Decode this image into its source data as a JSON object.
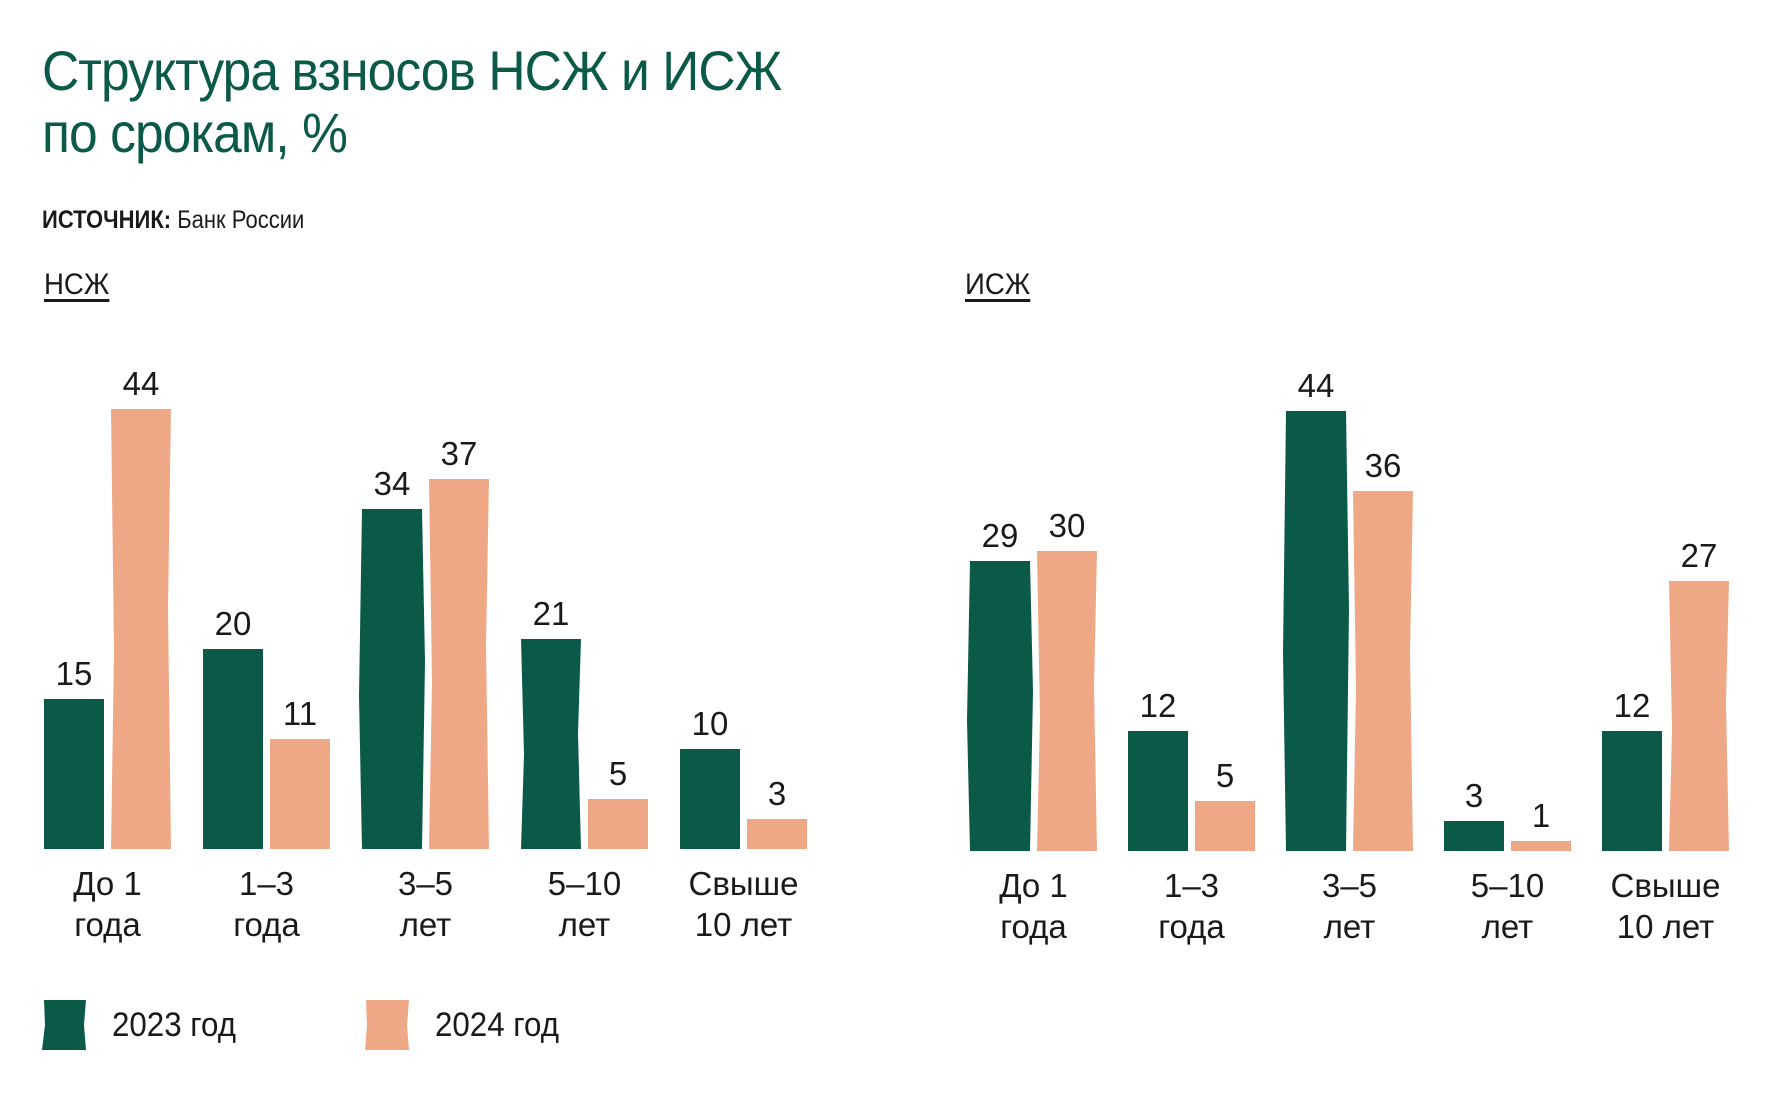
{
  "title_line1": "Структура взносов НСЖ и ИСЖ",
  "title_line2": "по срокам, %",
  "source_label": "ИСТОЧНИК:",
  "source_value": "Банк России",
  "colors": {
    "title": "#0b5a47",
    "series_2023": "#0b5a47",
    "series_2024": "#eea886"
  },
  "legend": [
    {
      "label": "2023 год",
      "color": "#0b5a47"
    },
    {
      "label": "2024 год",
      "color": "#eea886"
    }
  ],
  "chart_data": [
    {
      "type": "bar",
      "title": "НСЖ",
      "categories": [
        [
          "До 1",
          "года"
        ],
        [
          "1–3",
          "года"
        ],
        [
          "3–5",
          "лет"
        ],
        [
          "5–10",
          "лет"
        ],
        [
          "Свыше",
          "10 лет"
        ]
      ],
      "series": [
        {
          "name": "2023 год",
          "values": [
            15,
            20,
            34,
            21,
            10
          ]
        },
        {
          "name": "2024 год",
          "values": [
            44,
            11,
            37,
            5,
            3
          ]
        }
      ],
      "ylim": [
        0,
        44
      ]
    },
    {
      "type": "bar",
      "title": "ИСЖ",
      "categories": [
        [
          "До 1",
          "года"
        ],
        [
          "1–3",
          "года"
        ],
        [
          "3–5",
          "лет"
        ],
        [
          "5–10",
          "лет"
        ],
        [
          "Свыше",
          "10 лет"
        ]
      ],
      "series": [
        {
          "name": "2023 год",
          "values": [
            29,
            12,
            44,
            3,
            12
          ]
        },
        {
          "name": "2024 год",
          "values": [
            30,
            5,
            36,
            1,
            27
          ]
        }
      ],
      "ylim": [
        0,
        44
      ]
    }
  ]
}
